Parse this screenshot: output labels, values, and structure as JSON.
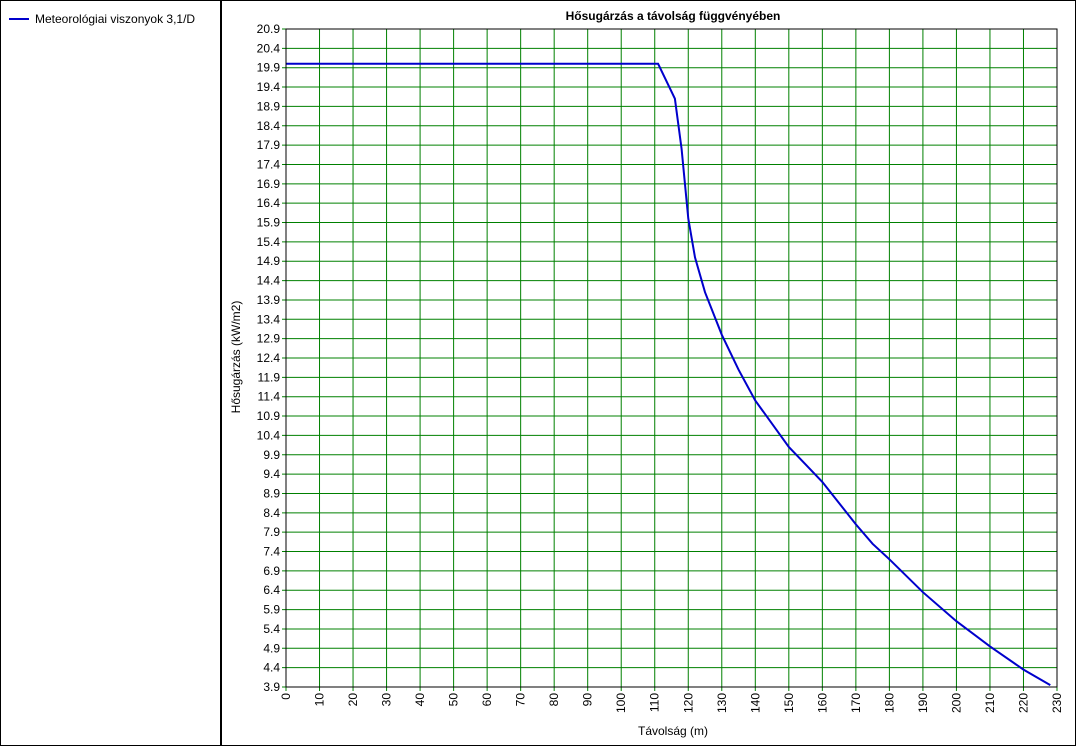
{
  "legend": {
    "items": [
      {
        "label": "Meteorológiai viszonyok 3,1/D",
        "color": "#0000cc"
      }
    ]
  },
  "chart_data": {
    "type": "line",
    "title": "Hősugárzás a távolság függvényében",
    "xlabel": "Távolság (m)",
    "ylabel": "Hősugárzás (kW/m2)",
    "xlim": [
      0,
      230
    ],
    "ylim": [
      3.9,
      20.9
    ],
    "x_ticks": [
      "0",
      "10",
      "20",
      "30",
      "40",
      "50",
      "60",
      "70",
      "80",
      "90",
      "100",
      "110",
      "120",
      "130",
      "140",
      "150",
      "160",
      "170",
      "180",
      "190",
      "200",
      "210",
      "220",
      "230"
    ],
    "y_ticks": [
      "3.9",
      "4.4",
      "4.9",
      "5.4",
      "5.9",
      "6.4",
      "6.9",
      "7.4",
      "7.9",
      "8.4",
      "8.9",
      "9.4",
      "9.9",
      "10.4",
      "10.9",
      "11.4",
      "11.9",
      "12.4",
      "12.9",
      "13.4",
      "13.9",
      "14.4",
      "14.9",
      "15.4",
      "15.9",
      "16.4",
      "16.9",
      "17.4",
      "17.9",
      "18.4",
      "18.9",
      "19.4",
      "19.9",
      "20.4",
      "20.9"
    ],
    "grid": true,
    "grid_color": "#008000",
    "line_color": "#0000cc",
    "series": [
      {
        "name": "Meteorológiai viszonyok 3,1/D",
        "x": [
          0,
          111,
          116,
          118,
          120,
          122,
          125,
          130,
          135,
          140,
          145,
          150,
          155,
          160,
          165,
          170,
          175,
          180,
          190,
          200,
          210,
          220,
          228
        ],
        "y": [
          20.0,
          20.0,
          19.1,
          17.8,
          16.0,
          15.0,
          14.1,
          13.0,
          12.1,
          11.3,
          10.7,
          10.1,
          9.65,
          9.2,
          8.65,
          8.1,
          7.6,
          7.2,
          6.35,
          5.6,
          4.95,
          4.35,
          3.95
        ]
      }
    ]
  }
}
